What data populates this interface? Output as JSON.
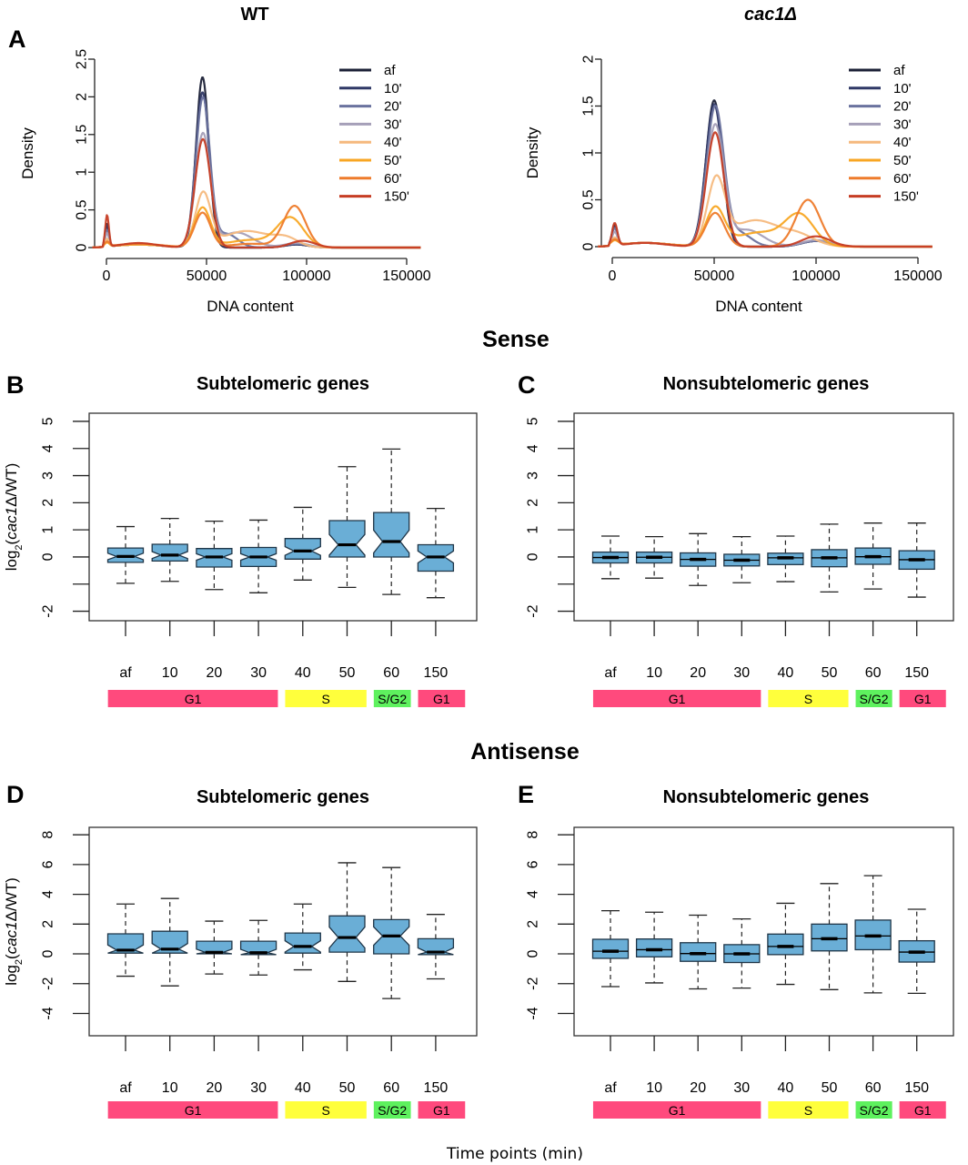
{
  "figure": {
    "section_titles": {
      "sense": "Sense",
      "antisense": "Antisense"
    },
    "footer_xlabel": "Time points (min)"
  },
  "chart_data": [
    {
      "id": "A-WT",
      "panel": "A",
      "type": "line",
      "title": "WT",
      "xlabel": "DNA content",
      "ylabel": "Density",
      "xlim": [
        -7000,
        157000
      ],
      "ylim": [
        0,
        2.5
      ],
      "xticks": [
        0,
        50000,
        100000,
        150000
      ],
      "yticks": [
        0,
        0.5,
        1,
        1.5,
        2,
        2.5
      ],
      "ytick_labels": [
        "0",
        "0.5",
        "1",
        "1.5",
        "2",
        "2.5"
      ],
      "legend_position": "top-right",
      "series": [
        {
          "name": "af",
          "color": "#1b2036",
          "components": [
            [
              300,
              0.3,
              900
            ],
            [
              48000,
              2.26,
              3200
            ],
            [
              16000,
              0.04,
              12000
            ],
            [
              95000,
              0.04,
              6000
            ]
          ]
        },
        {
          "name": "10'",
          "color": "#2f3866",
          "components": [
            [
              300,
              0.28,
              900
            ],
            [
              48000,
              2.06,
              3400
            ],
            [
              16000,
              0.04,
              12000
            ],
            [
              95000,
              0.04,
              6000
            ]
          ]
        },
        {
          "name": "20'",
          "color": "#6a729e",
          "components": [
            [
              300,
              0.22,
              900
            ],
            [
              48200,
              1.98,
              3500
            ],
            [
              60000,
              0.18,
              5500
            ],
            [
              16000,
              0.04,
              12000
            ],
            [
              95000,
              0.05,
              6000
            ]
          ]
        },
        {
          "name": "30'",
          "color": "#a59fb8",
          "components": [
            [
              300,
              0.18,
              900
            ],
            [
              48200,
              1.5,
              3700
            ],
            [
              65000,
              0.2,
              8000
            ],
            [
              16000,
              0.04,
              12000
            ],
            [
              95000,
              0.06,
              6000
            ]
          ]
        },
        {
          "name": "40'",
          "color": "#f5b97e",
          "components": [
            [
              300,
              0.1,
              900
            ],
            [
              48300,
              0.7,
              3800
            ],
            [
              70000,
              0.22,
              12000
            ],
            [
              90000,
              0.1,
              6000
            ],
            [
              16000,
              0.04,
              12000
            ]
          ]
        },
        {
          "name": "50'",
          "color": "#f8a623",
          "components": [
            [
              300,
              0.05,
              1200
            ],
            [
              48000,
              0.52,
              4000
            ],
            [
              72000,
              0.1,
              12000
            ],
            [
              92000,
              0.38,
              6500
            ],
            [
              16000,
              0.04,
              12000
            ]
          ]
        },
        {
          "name": "60'",
          "color": "#ee7b2b",
          "components": [
            [
              300,
              0.06,
              1200
            ],
            [
              48000,
              0.46,
              4000
            ],
            [
              94000,
              0.55,
              5500
            ],
            [
              72000,
              0.05,
              10000
            ],
            [
              16000,
              0.05,
              12000
            ]
          ]
        },
        {
          "name": "150'",
          "color": "#c63d24",
          "components": [
            [
              300,
              0.42,
              900
            ],
            [
              48200,
              1.44,
              3900
            ],
            [
              98000,
              0.09,
              6000
            ],
            [
              16000,
              0.06,
              9000
            ]
          ]
        }
      ]
    },
    {
      "id": "A-cac1",
      "panel": "A",
      "type": "line",
      "title": "cac1Δ",
      "xlabel": "DNA content",
      "ylabel": "Density",
      "xlim": [
        -7000,
        157000
      ],
      "ylim": [
        0,
        2
      ],
      "xticks": [
        0,
        50000,
        100000,
        150000
      ],
      "yticks": [
        0,
        0.5,
        1,
        1.5,
        2
      ],
      "ytick_labels": [
        "0",
        "0.5",
        "1",
        "1.5",
        "2"
      ],
      "legend_position": "top-right",
      "series": [
        {
          "name": "af",
          "color": "#1b2036",
          "components": [
            [
              1200,
              0.22,
              1300
            ],
            [
              50000,
              1.56,
              4000
            ],
            [
              16000,
              0.04,
              12000
            ],
            [
              100000,
              0.06,
              7000
            ]
          ]
        },
        {
          "name": "10'",
          "color": "#2f3866",
          "components": [
            [
              1200,
              0.2,
              1300
            ],
            [
              50000,
              1.52,
              4100
            ],
            [
              16000,
              0.04,
              12000
            ],
            [
              100000,
              0.06,
              7000
            ]
          ]
        },
        {
          "name": "20'",
          "color": "#6a729e",
          "components": [
            [
              1200,
              0.18,
              1300
            ],
            [
              50500,
              1.48,
              4200
            ],
            [
              62000,
              0.15,
              6000
            ],
            [
              16000,
              0.04,
              12000
            ],
            [
              100000,
              0.06,
              7000
            ]
          ]
        },
        {
          "name": "30'",
          "color": "#a59fb8",
          "components": [
            [
              1200,
              0.14,
              1300
            ],
            [
              50500,
              1.28,
              4300
            ],
            [
              66000,
              0.18,
              8000
            ],
            [
              16000,
              0.04,
              12000
            ],
            [
              100000,
              0.07,
              7000
            ]
          ]
        },
        {
          "name": "40'",
          "color": "#f5b97e",
          "components": [
            [
              1200,
              0.08,
              1500
            ],
            [
              51000,
              0.68,
              4300
            ],
            [
              70000,
              0.28,
              12000
            ],
            [
              92000,
              0.1,
              8000
            ],
            [
              16000,
              0.04,
              12000
            ]
          ]
        },
        {
          "name": "50'",
          "color": "#f8a623",
          "components": [
            [
              1200,
              0.05,
              1800
            ],
            [
              50500,
              0.4,
              4500
            ],
            [
              72000,
              0.15,
              12000
            ],
            [
              92000,
              0.32,
              7000
            ],
            [
              16000,
              0.04,
              12000
            ]
          ]
        },
        {
          "name": "60'",
          "color": "#ee7b2b",
          "components": [
            [
              1200,
              0.06,
              1800
            ],
            [
              50500,
              0.36,
              4600
            ],
            [
              96000,
              0.5,
              6000
            ],
            [
              16000,
              0.04,
              12000
            ]
          ]
        },
        {
          "name": "150'",
          "color": "#c63d24",
          "components": [
            [
              1200,
              0.24,
              1300
            ],
            [
              50500,
              1.22,
              4300
            ],
            [
              100000,
              0.11,
              7000
            ],
            [
              16000,
              0.04,
              10000
            ]
          ]
        }
      ]
    },
    {
      "id": "B",
      "panel": "B",
      "type": "box",
      "group": "Sense",
      "title": "Subtelomeric genes",
      "ylabel_prefix": "log",
      "ylabel_sub": "2",
      "ylabel_open": "(",
      "ylabel_italic": "cac1",
      "ylabel_rest": "Δ/WT)",
      "ylim": [
        -2.35,
        5.3
      ],
      "yticks": [
        -2,
        -1,
        0,
        1,
        2,
        3,
        4,
        5
      ],
      "ytick_labels": [
        "-2",
        "",
        "0",
        "1",
        "2",
        "3",
        "4",
        "5"
      ],
      "notched": true,
      "box_color": "#6aaed6",
      "categories": [
        "af",
        "10",
        "20",
        "30",
        "40",
        "50",
        "60",
        "150"
      ],
      "boxes": [
        {
          "whisker_high": 1.12,
          "q3": 0.33,
          "median": 0.02,
          "q1": -0.2,
          "whisker_low": -0.97,
          "notch": 0.12
        },
        {
          "whisker_high": 1.42,
          "q3": 0.47,
          "median": 0.07,
          "q1": -0.15,
          "whisker_low": -0.9,
          "notch": 0.13
        },
        {
          "whisker_high": 1.32,
          "q3": 0.31,
          "median": 0.0,
          "q1": -0.37,
          "whisker_low": -1.2,
          "notch": 0.12
        },
        {
          "whisker_high": 1.36,
          "q3": 0.35,
          "median": 0.0,
          "q1": -0.35,
          "whisker_low": -1.32,
          "notch": 0.12
        },
        {
          "whisker_high": 1.83,
          "q3": 0.68,
          "median": 0.22,
          "q1": -0.08,
          "whisker_low": -0.85,
          "notch": 0.16
        },
        {
          "whisker_high": 3.33,
          "q3": 1.34,
          "median": 0.45,
          "q1": 0.0,
          "whisker_low": -1.12,
          "notch": 0.38
        },
        {
          "whisker_high": 3.98,
          "q3": 1.64,
          "median": 0.57,
          "q1": 0.0,
          "whisker_low": -1.38,
          "notch": 0.42
        },
        {
          "whisker_high": 1.79,
          "q3": 0.45,
          "median": 0.0,
          "q1": -0.52,
          "whisker_low": -1.5,
          "notch": 0.22
        }
      ],
      "phases": [
        {
          "label": "G1",
          "from": 0,
          "to": 3,
          "color": "#ff4a7d"
        },
        {
          "label": "S",
          "from": 4,
          "to": 5,
          "color": "#ffff3c"
        },
        {
          "label": "S/G2",
          "from": 6,
          "to": 6,
          "color": "#5ef15e"
        },
        {
          "label": "G1",
          "from": 7,
          "to": 7,
          "color": "#ff4a7d"
        }
      ]
    },
    {
      "id": "C",
      "panel": "C",
      "type": "box",
      "group": "Sense",
      "title": "Nonsubtelomeric genes",
      "ylim": [
        -2.35,
        5.3
      ],
      "yticks": [
        -2,
        -1,
        0,
        1,
        2,
        3,
        4,
        5
      ],
      "ytick_labels": [
        "-2",
        "",
        "0",
        "1",
        "2",
        "3",
        "4",
        "5"
      ],
      "notched": false,
      "box_color": "#6aaed6",
      "categories": [
        "af",
        "10",
        "20",
        "30",
        "40",
        "50",
        "60",
        "150"
      ],
      "boxes": [
        {
          "whisker_high": 0.77,
          "q3": 0.18,
          "median": -0.02,
          "q1": -0.22,
          "whisker_low": -0.8
        },
        {
          "whisker_high": 0.75,
          "q3": 0.18,
          "median": -0.01,
          "q1": -0.22,
          "whisker_low": -0.78
        },
        {
          "whisker_high": 0.86,
          "q3": 0.15,
          "median": -0.09,
          "q1": -0.34,
          "whisker_low": -1.05
        },
        {
          "whisker_high": 0.75,
          "q3": 0.1,
          "median": -0.12,
          "q1": -0.33,
          "whisker_low": -0.95
        },
        {
          "whisker_high": 0.77,
          "q3": 0.14,
          "median": -0.03,
          "q1": -0.28,
          "whisker_low": -0.91
        },
        {
          "whisker_high": 1.21,
          "q3": 0.27,
          "median": -0.03,
          "q1": -0.36,
          "whisker_low": -1.29
        },
        {
          "whisker_high": 1.25,
          "q3": 0.33,
          "median": 0.01,
          "q1": -0.27,
          "whisker_low": -1.18
        },
        {
          "whisker_high": 1.25,
          "q3": 0.23,
          "median": -0.1,
          "q1": -0.45,
          "whisker_low": -1.48
        }
      ],
      "phases": [
        {
          "label": "G1",
          "from": 0,
          "to": 3,
          "color": "#ff4a7d"
        },
        {
          "label": "S",
          "from": 4,
          "to": 5,
          "color": "#ffff3c"
        },
        {
          "label": "S/G2",
          "from": 6,
          "to": 6,
          "color": "#5ef15e"
        },
        {
          "label": "G1",
          "from": 7,
          "to": 7,
          "color": "#ff4a7d"
        }
      ]
    },
    {
      "id": "D",
      "panel": "D",
      "type": "box",
      "group": "Antisense",
      "title": "Subtelomeric genes",
      "ylabel_prefix": "log",
      "ylabel_sub": "2",
      "ylabel_open": "(",
      "ylabel_italic": "cac1",
      "ylabel_rest": "Δ/WT)",
      "ylim": [
        -5.5,
        8.5
      ],
      "yticks": [
        -4,
        -2,
        0,
        2,
        4,
        6,
        8
      ],
      "ytick_labels": [
        "-4",
        "-2",
        "0",
        "2",
        "4",
        "6",
        "8"
      ],
      "notched": true,
      "box_color": "#6aaed6",
      "categories": [
        "af",
        "10",
        "20",
        "30",
        "40",
        "50",
        "60",
        "150"
      ],
      "boxes": [
        {
          "whisker_high": 3.35,
          "q3": 1.35,
          "median": 0.25,
          "q1": 0.05,
          "whisker_low": -1.5,
          "notch": 0.35
        },
        {
          "whisker_high": 3.72,
          "q3": 1.52,
          "median": 0.32,
          "q1": 0.05,
          "whisker_low": -2.15,
          "notch": 0.38
        },
        {
          "whisker_high": 2.2,
          "q3": 0.85,
          "median": 0.1,
          "q1": 0.0,
          "whisker_low": -1.35,
          "notch": 0.22
        },
        {
          "whisker_high": 2.25,
          "q3": 0.85,
          "median": 0.08,
          "q1": -0.05,
          "whisker_low": -1.42,
          "notch": 0.22
        },
        {
          "whisker_high": 3.35,
          "q3": 1.4,
          "median": 0.5,
          "q1": 0.05,
          "whisker_low": -1.07,
          "notch": 0.38
        },
        {
          "whisker_high": 6.12,
          "q3": 2.55,
          "median": 1.1,
          "q1": 0.12,
          "whisker_low": -1.85,
          "notch": 0.7
        },
        {
          "whisker_high": 5.8,
          "q3": 2.3,
          "median": 1.2,
          "q1": 0.0,
          "whisker_low": -3.0,
          "notch": 0.62
        },
        {
          "whisker_high": 2.65,
          "q3": 1.02,
          "median": 0.12,
          "q1": -0.05,
          "whisker_low": -1.68,
          "notch": 0.28
        }
      ],
      "phases": [
        {
          "label": "G1",
          "from": 0,
          "to": 3,
          "color": "#ff4a7d"
        },
        {
          "label": "S",
          "from": 4,
          "to": 5,
          "color": "#ffff3c"
        },
        {
          "label": "S/G2",
          "from": 6,
          "to": 6,
          "color": "#5ef15e"
        },
        {
          "label": "G1",
          "from": 7,
          "to": 7,
          "color": "#ff4a7d"
        }
      ]
    },
    {
      "id": "E",
      "panel": "E",
      "type": "box",
      "group": "Antisense",
      "title": "Nonsubtelomeric genes",
      "ylim": [
        -5.5,
        8.5
      ],
      "yticks": [
        -4,
        -2,
        0,
        2,
        4,
        6,
        8
      ],
      "ytick_labels": [
        "-4",
        "-2",
        "0",
        "2",
        "4",
        "6",
        "8"
      ],
      "notched": false,
      "box_color": "#6aaed6",
      "categories": [
        "af",
        "10",
        "20",
        "30",
        "40",
        "50",
        "60",
        "150"
      ],
      "boxes": [
        {
          "whisker_high": 2.9,
          "q3": 0.98,
          "median": 0.18,
          "q1": -0.3,
          "whisker_low": -2.2
        },
        {
          "whisker_high": 2.8,
          "q3": 1.0,
          "median": 0.28,
          "q1": -0.2,
          "whisker_low": -1.95
        },
        {
          "whisker_high": 2.6,
          "q3": 0.75,
          "median": 0.02,
          "q1": -0.5,
          "whisker_low": -2.35
        },
        {
          "whisker_high": 2.35,
          "q3": 0.62,
          "median": 0.0,
          "q1": -0.58,
          "whisker_low": -2.3
        },
        {
          "whisker_high": 3.4,
          "q3": 1.33,
          "median": 0.5,
          "q1": -0.05,
          "whisker_low": -2.05
        },
        {
          "whisker_high": 4.72,
          "q3": 2.0,
          "median": 1.02,
          "q1": 0.2,
          "whisker_low": -2.4
        },
        {
          "whisker_high": 5.25,
          "q3": 2.27,
          "median": 1.2,
          "q1": 0.28,
          "whisker_low": -2.62
        },
        {
          "whisker_high": 3.0,
          "q3": 0.88,
          "median": 0.12,
          "q1": -0.55,
          "whisker_low": -2.65
        }
      ],
      "phases": [
        {
          "label": "G1",
          "from": 0,
          "to": 3,
          "color": "#ff4a7d"
        },
        {
          "label": "S",
          "from": 4,
          "to": 5,
          "color": "#ffff3c"
        },
        {
          "label": "S/G2",
          "from": 6,
          "to": 6,
          "color": "#5ef15e"
        },
        {
          "label": "G1",
          "from": 7,
          "to": 7,
          "color": "#ff4a7d"
        }
      ]
    }
  ]
}
